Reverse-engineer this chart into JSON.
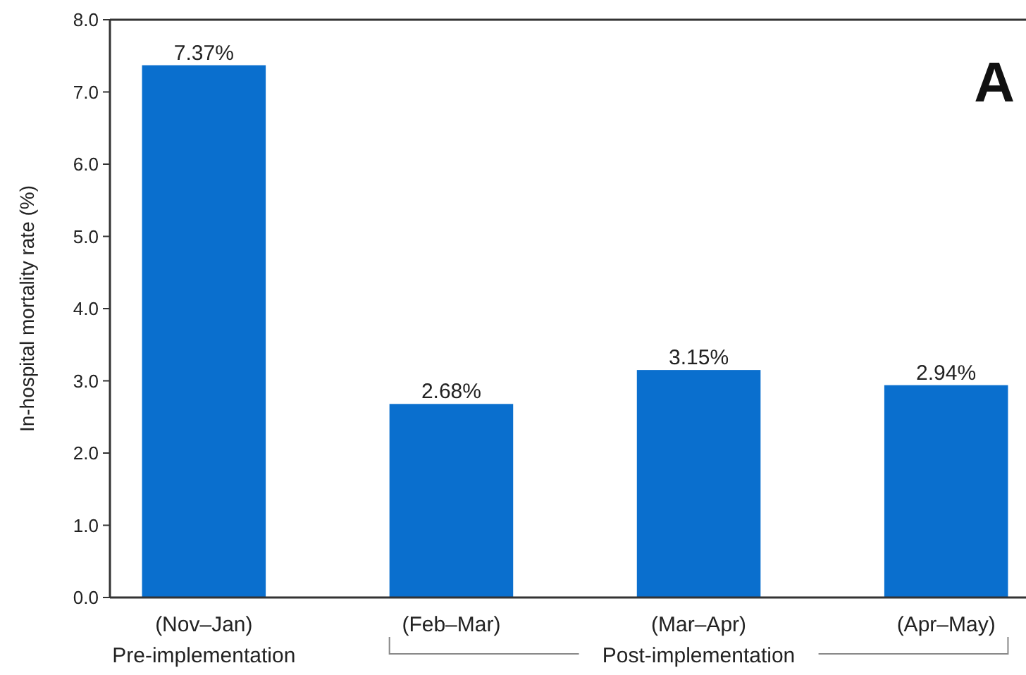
{
  "chart_data": {
    "type": "bar",
    "ylabel": "In-hospital mortality rate (%)",
    "categories": [
      "(Nov–Jan)",
      "(Feb–Mar)",
      "(Mar–Apr)",
      "(Apr–May)"
    ],
    "values": [
      7.37,
      2.68,
      3.15,
      2.94
    ],
    "value_labels": [
      "7.37%",
      "2.68%",
      "3.15%",
      "2.94%"
    ],
    "color": "#0a6fce",
    "ylim": [
      0,
      8
    ],
    "yticks": [
      {
        "value": 0,
        "label": "0.0"
      },
      {
        "value": 1,
        "label": "1.0"
      },
      {
        "value": 2,
        "label": "2.0"
      },
      {
        "value": 3,
        "label": "3.0"
      },
      {
        "value": 4,
        "label": "4.0"
      },
      {
        "value": 5,
        "label": "5.0"
      },
      {
        "value": 6,
        "label": "6.0"
      },
      {
        "value": 7,
        "label": "7.0"
      },
      {
        "value": 8,
        "label": "8.0"
      }
    ],
    "grid": false,
    "annotations": [
      "A",
      "Pre-implementation",
      "Post-implementation"
    ]
  }
}
